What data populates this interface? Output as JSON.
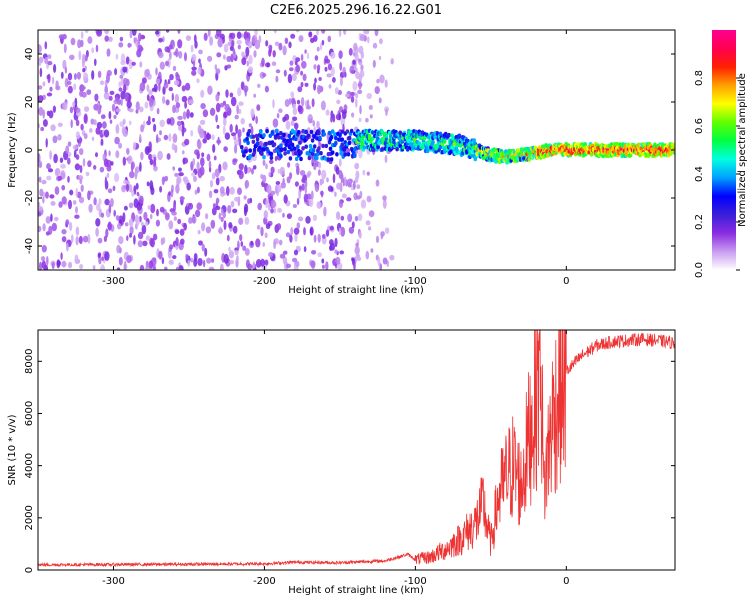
{
  "title": "C2E6.2025.296.16.22.G01",
  "chart_data": [
    {
      "type": "heatmap",
      "name": "spectrogram",
      "xlabel": "Height of straight line (km)",
      "ylabel": "Frequency (Hz)",
      "xlim": [
        -350,
        72
      ],
      "ylim": [
        -50,
        50
      ],
      "xticks": [
        -300,
        -200,
        -100,
        0
      ],
      "yticks": [
        -40,
        -20,
        0,
        20,
        40
      ],
      "colorbar": {
        "label": "Normalized spectral amplitude",
        "range": [
          0,
          1
        ],
        "ticks": [
          0.0,
          0.2,
          0.4,
          0.6,
          0.8
        ],
        "tick_labels": [
          "0.0",
          "0.2",
          "0.4",
          "0.6",
          "0.8"
        ],
        "colors": [
          "#ffffff",
          "#c89cf0",
          "#8a2be2",
          "#3a1fd8",
          "#0000ff",
          "#00a0ff",
          "#00ffe0",
          "#00ff40",
          "#60ff00",
          "#ffff00",
          "#ffa000",
          "#ff2000",
          "#ff0050",
          "#ff0090"
        ]
      },
      "features": {
        "noise_region_x": [
          -350,
          -135
        ],
        "signal_track": {
          "x": [
            -140,
            -120,
            -100,
            -85,
            -70,
            -60,
            -50,
            -40,
            -30,
            -20,
            -10,
            0,
            20,
            40,
            72
          ],
          "y": [
            4,
            4,
            4,
            3,
            2,
            0,
            -2,
            -3,
            -2,
            -1,
            0,
            0,
            0,
            0,
            0
          ]
        }
      }
    },
    {
      "type": "line",
      "name": "snr",
      "xlabel": "Height of straight line (km)",
      "ylabel": "SNR (10 * v/v)",
      "xlim": [
        -350,
        72
      ],
      "ylim": [
        0,
        9200
      ],
      "xticks": [
        -300,
        -200,
        -100,
        0
      ],
      "yticks": [
        0,
        2000,
        4000,
        6000,
        8000
      ],
      "color": "#ee3333",
      "series": [
        {
          "name": "SNR",
          "x": [
            -350,
            -300,
            -250,
            -200,
            -180,
            -150,
            -120,
            -105,
            -100,
            -90,
            -80,
            -70,
            -60,
            -55,
            -50,
            -45,
            -40,
            -35,
            -30,
            -25,
            -20,
            -17,
            -15,
            -10,
            -5,
            0,
            10,
            20,
            30,
            40,
            50,
            60,
            72
          ],
          "y": [
            200,
            210,
            220,
            240,
            300,
            280,
            350,
            600,
            400,
            500,
            800,
            1200,
            1800,
            2500,
            1000,
            2800,
            3500,
            4000,
            3200,
            5000,
            6500,
            9000,
            3000,
            5500,
            6800,
            7600,
            8200,
            8600,
            8750,
            8800,
            8850,
            8800,
            8700
          ]
        }
      ]
    }
  ]
}
